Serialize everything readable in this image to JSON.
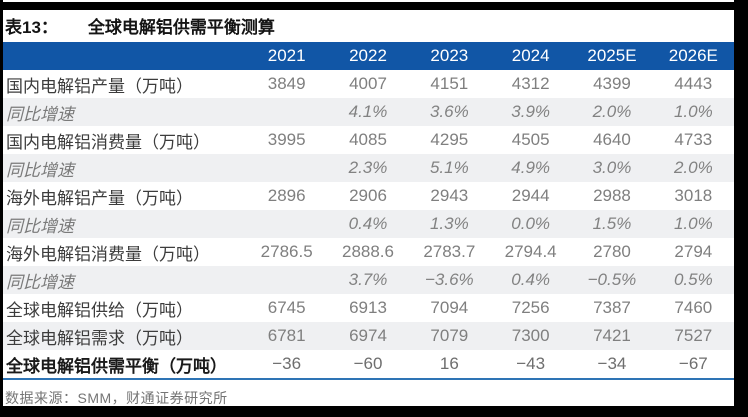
{
  "title": {
    "tag": "表13：",
    "text": "全球电解铝供需平衡测算"
  },
  "table": {
    "year_headers": [
      "2021",
      "2022",
      "2023",
      "2024",
      "2025E",
      "2026E"
    ],
    "rows": [
      {
        "label": "国内电解铝产量（万吨）",
        "style": "normal",
        "values": [
          "3849",
          "4007",
          "4151",
          "4312",
          "4399",
          "4443"
        ]
      },
      {
        "label": "同比增速",
        "style": "growth",
        "values": [
          "",
          "4.1%",
          "3.6%",
          "3.9%",
          "2.0%",
          "1.0%"
        ]
      },
      {
        "label": "国内电解铝消费量（万吨）",
        "style": "normal",
        "values": [
          "3995",
          "4085",
          "4295",
          "4505",
          "4640",
          "4733"
        ]
      },
      {
        "label": "同比增速",
        "style": "growth",
        "values": [
          "",
          "2.3%",
          "5.1%",
          "4.9%",
          "3.0%",
          "2.0%"
        ]
      },
      {
        "label": "海外电解铝产量（万吨）",
        "style": "normal",
        "values": [
          "2896",
          "2906",
          "2943",
          "2944",
          "2988",
          "3018"
        ]
      },
      {
        "label": "同比增速",
        "style": "growth",
        "values": [
          "",
          "0.4%",
          "1.3%",
          "0.0%",
          "1.5%",
          "1.0%"
        ]
      },
      {
        "label": "海外电解铝消费量（万吨）",
        "style": "normal",
        "values": [
          "2786.5",
          "2888.6",
          "2783.7",
          "2794.4",
          "2780",
          "2794"
        ]
      },
      {
        "label": "同比增速",
        "style": "growth",
        "values": [
          "",
          "3.7%",
          "−3.6%",
          "0.4%",
          "−0.5%",
          "0.5%"
        ]
      },
      {
        "label": "全球电解铝供给（万吨）",
        "style": "normal",
        "values": [
          "6745",
          "6913",
          "7094",
          "7256",
          "7387",
          "7460"
        ]
      },
      {
        "label": "全球电解铝需求（万吨）",
        "style": "normal",
        "values": [
          "6781",
          "6974",
          "7079",
          "7300",
          "7421",
          "7527"
        ]
      },
      {
        "label": "全球电解铝供需平衡（万吨）",
        "style": "total",
        "values": [
          "−36",
          "−60",
          "16",
          "−43",
          "−34",
          "−67"
        ]
      }
    ]
  },
  "footer": {
    "source": "数据来源：SMM，财通证券研究所"
  },
  "colors": {
    "header_blue": "#1156A6",
    "bottom_rule_blue": "#2E74B5",
    "stripe_gray": "#EFF0F2",
    "frame_black": "#000000"
  },
  "chart_data": {
    "type": "table",
    "title": "表13：全球电解铝供需平衡测算",
    "categories": [
      "2021",
      "2022",
      "2023",
      "2024",
      "2025E",
      "2026E"
    ],
    "series": [
      {
        "name": "国内电解铝产量（万吨）",
        "values": [
          3849,
          4007,
          4151,
          4312,
          4399,
          4443
        ]
      },
      {
        "name": "国内电解铝产量同比增速(%)",
        "values": [
          null,
          4.1,
          3.6,
          3.9,
          2.0,
          1.0
        ]
      },
      {
        "name": "国内电解铝消费量（万吨）",
        "values": [
          3995,
          4085,
          4295,
          4505,
          4640,
          4733
        ]
      },
      {
        "name": "国内电解铝消费量同比增速(%)",
        "values": [
          null,
          2.3,
          5.1,
          4.9,
          3.0,
          2.0
        ]
      },
      {
        "name": "海外电解铝产量（万吨）",
        "values": [
          2896,
          2906,
          2943,
          2944,
          2988,
          3018
        ]
      },
      {
        "name": "海外电解铝产量同比增速(%)",
        "values": [
          null,
          0.4,
          1.3,
          0.0,
          1.5,
          1.0
        ]
      },
      {
        "name": "海外电解铝消费量（万吨）",
        "values": [
          2786.5,
          2888.6,
          2783.7,
          2794.4,
          2780,
          2794
        ]
      },
      {
        "name": "海外电解铝消费量同比增速(%)",
        "values": [
          null,
          3.7,
          -3.6,
          0.4,
          -0.5,
          0.5
        ]
      },
      {
        "name": "全球电解铝供给（万吨）",
        "values": [
          6745,
          6913,
          7094,
          7256,
          7387,
          7460
        ]
      },
      {
        "name": "全球电解铝需求（万吨）",
        "values": [
          6781,
          6974,
          7079,
          7300,
          7421,
          7527
        ]
      },
      {
        "name": "全球电解铝供需平衡（万吨）",
        "values": [
          -36,
          -60,
          16,
          -43,
          -34,
          -67
        ]
      }
    ]
  }
}
